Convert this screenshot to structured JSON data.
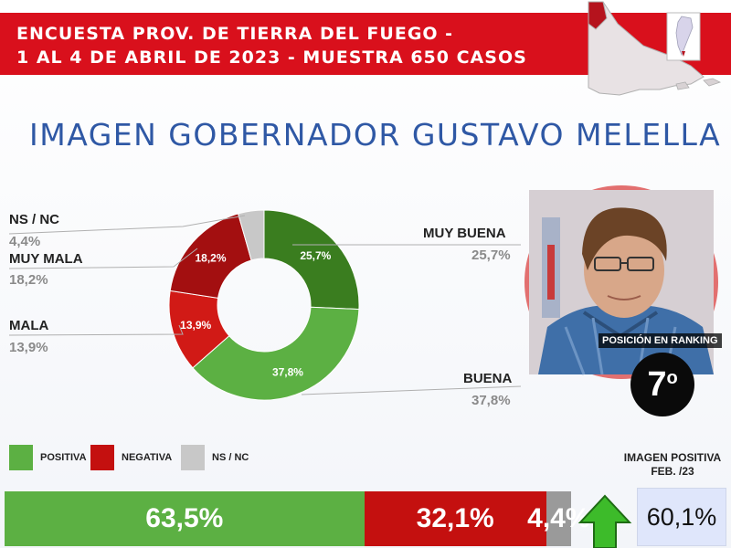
{
  "header": {
    "line1": "ENCUESTA PROV. DE TIERRA DEL FUEGO -",
    "line2": "1 AL 4 DE ABRIL DE 2023 - MUESTRA 650 CASOS"
  },
  "main_title": "IMAGEN GOBERNADOR  GUSTAVO MELELLA",
  "colors": {
    "header_red": "#d9101c",
    "title_blue": "#2f58a5",
    "muy_buena": "#3a7d1f",
    "buena": "#5cb043",
    "mala": "#d11a16",
    "muy_mala": "#a30f10",
    "ns_nc": "#c8c8c8"
  },
  "chart_data": [
    {
      "type": "pie",
      "style": "donut",
      "categories": [
        "MUY BUENA",
        "BUENA",
        "MALA",
        "MUY MALA",
        "NS / NC"
      ],
      "values": [
        25.7,
        37.8,
        13.9,
        18.2,
        4.4
      ],
      "value_labels": [
        "25,7%",
        "37,8%",
        "13,9%",
        "18,2%",
        "4,4%"
      ],
      "colors": [
        "#3a7d1f",
        "#5cb043",
        "#d11a16",
        "#a30f10",
        "#c8c8c8"
      ]
    },
    {
      "type": "bar",
      "style": "stacked-horizontal",
      "categories": [
        "POSITIVA",
        "NEGATIVA",
        "NS / NC"
      ],
      "values": [
        63.5,
        32.1,
        4.4
      ],
      "value_labels": [
        "63,5%",
        "32,1%",
        "4,4%"
      ],
      "colors": [
        "#5cb043",
        "#c4100f",
        "#9a9a9a"
      ]
    }
  ],
  "legend": [
    {
      "label": "POSITIVA",
      "color": "#5cb043"
    },
    {
      "label": "NEGATIVA",
      "color": "#c4100f"
    },
    {
      "label": "NS / NC",
      "color": "#c8c8c8"
    }
  ],
  "ranking": {
    "label": "POSICIÓN EN RANKING",
    "number": "7",
    "suffix": "o"
  },
  "imagen_positiva": {
    "title": "IMAGEN POSITIVA",
    "subtitle": "FEB. /23",
    "value": "60,1%",
    "trend": "up-arrow-icon"
  }
}
